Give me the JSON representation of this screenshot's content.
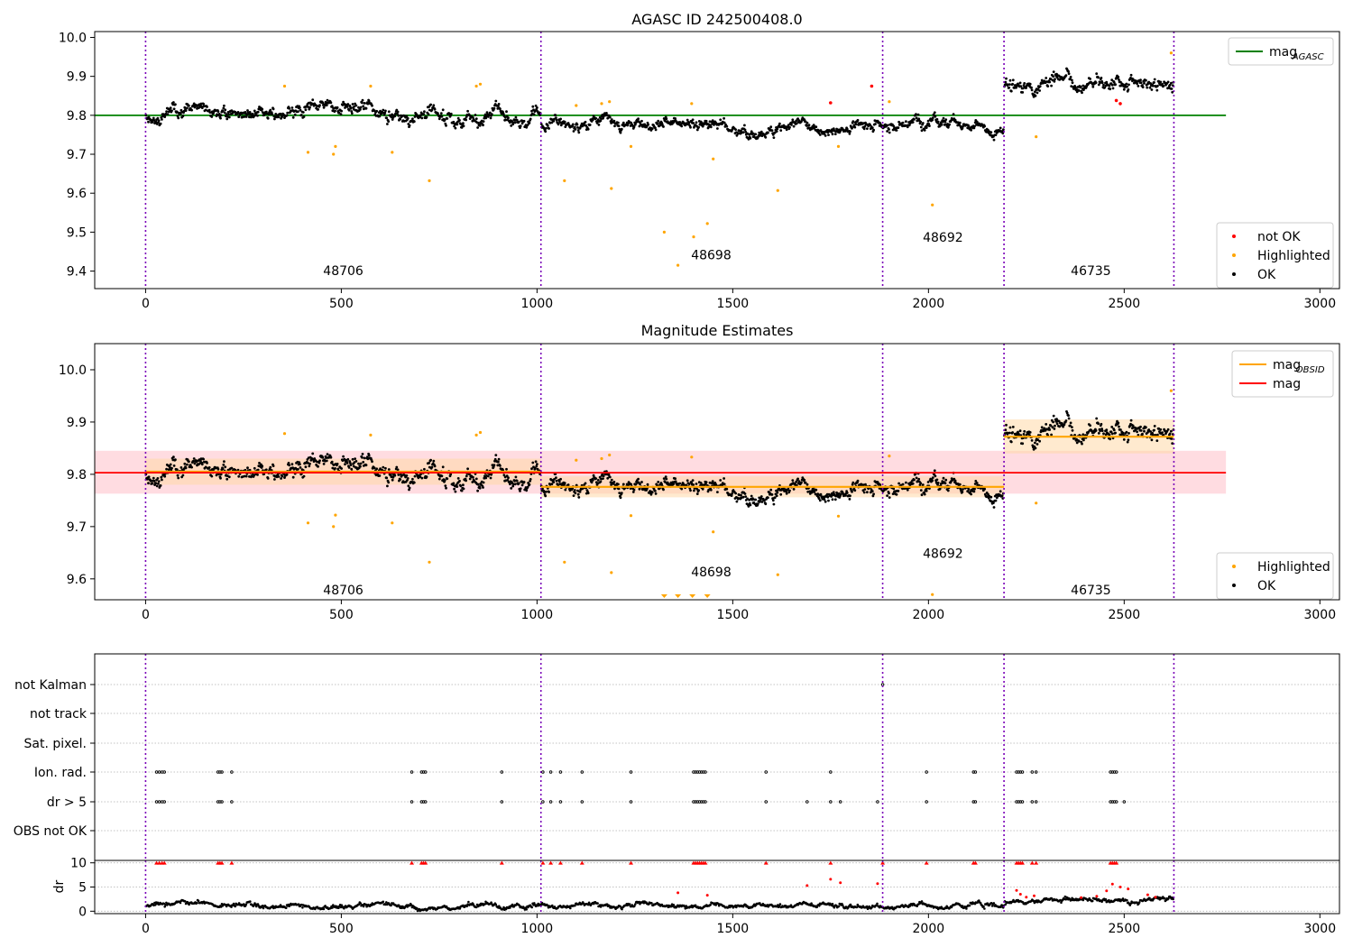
{
  "figure": {
    "colors": {
      "ok": "#000000",
      "highlighted": "#ffa500",
      "not_ok": "#ff0000",
      "mag_agasc": "#008000",
      "mag_obsid": "#ffa500",
      "mag": "#ff0000",
      "obsid_boundary": "#7a00b8",
      "mag_band": "#ffc0c8",
      "mag_obsid_band": "#ffd9a8"
    }
  },
  "chart_data": [
    {
      "type": "scatter",
      "title": "AGASC ID 242500408.0",
      "xlim": [
        -130,
        3050
      ],
      "ylim": [
        9.355,
        10.015
      ],
      "x_ticks": [
        0,
        500,
        1000,
        1500,
        2000,
        2500,
        3000
      ],
      "y_ticks": [
        9.4,
        9.5,
        9.6,
        9.7,
        9.8,
        9.9,
        10.0
      ],
      "y_tick_labels": [
        "9.4",
        "9.5",
        "9.6",
        "9.7",
        "9.8",
        "9.9",
        "10.0"
      ],
      "obsid_boundaries": [
        0,
        1010,
        1883,
        2193,
        2627
      ],
      "obsids": [
        {
          "label": "48706",
          "x": 505,
          "y": 9.39
        },
        {
          "label": "48698",
          "x": 1445,
          "y": 9.43
        },
        {
          "label": "48692",
          "x": 2037,
          "y": 9.475
        },
        {
          "label": "46735",
          "x": 2415,
          "y": 9.39
        }
      ],
      "segments": [
        {
          "start": 0,
          "end": 1010,
          "mean": 9.805,
          "spread": 0.025,
          "seed": 11
        },
        {
          "start": 1010,
          "end": 1883,
          "mean": 9.776,
          "spread": 0.022,
          "seed": 23
        },
        {
          "start": 1883,
          "end": 2193,
          "mean": 9.779,
          "spread": 0.022,
          "seed": 37
        },
        {
          "start": 2193,
          "end": 2627,
          "mean": 9.872,
          "spread": 0.028,
          "seed": 51
        }
      ],
      "series": [
        {
          "name": "mag_AGASC",
          "kind": "line",
          "x": [
            -130,
            2760
          ],
          "y": [
            9.8,
            9.8
          ]
        }
      ],
      "highlighted_points": [
        [
          355,
          9.875
        ],
        [
          415,
          9.705
        ],
        [
          480,
          9.7
        ],
        [
          485,
          9.72
        ],
        [
          575,
          9.875
        ],
        [
          630,
          9.705
        ],
        [
          725,
          9.632
        ],
        [
          845,
          9.875
        ],
        [
          855,
          9.88
        ],
        [
          1070,
          9.632
        ],
        [
          1100,
          9.825
        ],
        [
          1165,
          9.83
        ],
        [
          1185,
          9.835
        ],
        [
          1190,
          9.612
        ],
        [
          1240,
          9.72
        ],
        [
          1325,
          9.5
        ],
        [
          1360,
          9.415
        ],
        [
          1395,
          9.83
        ],
        [
          1400,
          9.488
        ],
        [
          1435,
          9.522
        ],
        [
          1450,
          9.688
        ],
        [
          1615,
          9.607
        ],
        [
          1770,
          9.72
        ],
        [
          1900,
          9.835
        ],
        [
          2010,
          9.57
        ],
        [
          2275,
          9.745
        ],
        [
          2620,
          9.96
        ]
      ],
      "not_ok_points": [
        [
          1750,
          9.832
        ],
        [
          1855,
          9.875
        ],
        [
          2480,
          9.838
        ],
        [
          2490,
          9.83
        ]
      ],
      "legends": [
        {
          "placement": "top-right",
          "entries": [
            {
              "label": "mag",
              "subscript": "AGASC",
              "color": "#008000",
              "marker": "line"
            }
          ]
        },
        {
          "placement": "lower-right",
          "entries": [
            {
              "label": "not OK",
              "color": "#ff0000",
              "marker": "dot"
            },
            {
              "label": "Highlighted",
              "color": "#ffa500",
              "marker": "dot"
            },
            {
              "label": "OK",
              "color": "#000000",
              "marker": "dot"
            }
          ]
        }
      ]
    },
    {
      "type": "scatter",
      "title": "Magnitude Estimates",
      "xlim": [
        -130,
        3050
      ],
      "ylim": [
        9.56,
        10.05
      ],
      "x_ticks": [
        0,
        500,
        1000,
        1500,
        2000,
        2500,
        3000
      ],
      "y_ticks": [
        9.6,
        9.7,
        9.8,
        9.9,
        10.0
      ],
      "y_tick_labels": [
        "9.6",
        "9.7",
        "9.8",
        "9.9",
        "10.0"
      ],
      "obsid_boundaries": [
        0,
        1010,
        1883,
        2193,
        2627
      ],
      "obsids": [
        {
          "label": "48706",
          "x": 505,
          "y": 9.57
        },
        {
          "label": "48698",
          "x": 1445,
          "y": 9.605
        },
        {
          "label": "48692",
          "x": 2037,
          "y": 9.64
        },
        {
          "label": "46735",
          "x": 2415,
          "y": 9.57
        }
      ],
      "segments": [
        {
          "start": 0,
          "end": 1010,
          "mean": 9.805,
          "spread": 0.025,
          "seed": 11
        },
        {
          "start": 1010,
          "end": 1883,
          "mean": 9.776,
          "spread": 0.022,
          "seed": 23
        },
        {
          "start": 1883,
          "end": 2193,
          "mean": 9.779,
          "spread": 0.022,
          "seed": 37
        },
        {
          "start": 2193,
          "end": 2627,
          "mean": 9.872,
          "spread": 0.028,
          "seed": 51
        }
      ],
      "series": [
        {
          "name": "mag",
          "kind": "line",
          "color": "#ff0000",
          "x": [
            -130,
            2760
          ],
          "y": [
            9.803,
            9.803
          ],
          "band": [
            9.763,
            9.845
          ]
        },
        {
          "name": "mag_OBSID",
          "kind": "steps",
          "color": "#ffa500",
          "steps": [
            {
              "x0": 0,
              "x1": 1010,
              "y": 9.805,
              "band": [
                9.78,
                9.83
              ]
            },
            {
              "x0": 1010,
              "x1": 2193,
              "y": 9.776,
              "band": [
                9.756,
                9.796
              ]
            },
            {
              "x0": 2193,
              "x1": 2627,
              "y": 9.872,
              "band": [
                9.84,
                9.905
              ]
            }
          ]
        }
      ],
      "highlighted_points": [
        [
          355,
          9.878
        ],
        [
          415,
          9.707
        ],
        [
          480,
          9.7
        ],
        [
          485,
          9.722
        ],
        [
          575,
          9.875
        ],
        [
          630,
          9.707
        ],
        [
          725,
          9.632
        ],
        [
          845,
          9.875
        ],
        [
          855,
          9.88
        ],
        [
          1070,
          9.632
        ],
        [
          1100,
          9.827
        ],
        [
          1165,
          9.83
        ],
        [
          1185,
          9.837
        ],
        [
          1190,
          9.612
        ],
        [
          1240,
          9.721
        ],
        [
          1395,
          9.833
        ],
        [
          1450,
          9.69
        ],
        [
          1615,
          9.608
        ],
        [
          1770,
          9.72
        ],
        [
          1900,
          9.835
        ],
        [
          2010,
          9.57
        ],
        [
          2275,
          9.745
        ],
        [
          2620,
          9.96
        ]
      ],
      "below_range_markers": [
        1325,
        1360,
        1397,
        1435
      ],
      "legends": [
        {
          "placement": "top-right",
          "entries": [
            {
              "label": "mag",
              "subscript": "OBSID",
              "color": "#ffa500",
              "marker": "line"
            },
            {
              "label": "mag",
              "color": "#ff0000",
              "marker": "line"
            }
          ]
        },
        {
          "placement": "lower-right",
          "entries": [
            {
              "label": "Highlighted",
              "color": "#ffa500",
              "marker": "dot"
            },
            {
              "label": "OK",
              "color": "#000000",
              "marker": "dot"
            }
          ]
        }
      ]
    },
    {
      "type": "scatter",
      "xlim": [
        -130,
        3050
      ],
      "x_ticks": [
        0,
        500,
        1000,
        1500,
        2000,
        2500,
        3000
      ],
      "obsid_boundaries": [
        0,
        1010,
        1883,
        2193,
        2627
      ],
      "flag_rows": [
        "not Kalman",
        "not track",
        "Sat. pixel.",
        "Ion. rad.",
        "dr > 5",
        "OBS not OK"
      ],
      "flag_points": {
        "not Kalman": [
          1883
        ],
        "not track": [],
        "Sat. pixel.": [],
        "Ion. rad.": [
          28,
          35,
          42,
          48,
          185,
          190,
          195,
          220,
          680,
          705,
          710,
          715,
          910,
          1015,
          1035,
          1060,
          1115,
          1240,
          1400,
          1405,
          1410,
          1415,
          1420,
          1425,
          1430,
          1585,
          1750,
          1995,
          2115,
          2120,
          2225,
          2230,
          2235,
          2240,
          2265,
          2275,
          2465,
          2470,
          2475,
          2480
        ],
        "dr > 5": [
          28,
          35,
          42,
          48,
          185,
          190,
          195,
          220,
          680,
          705,
          710,
          715,
          910,
          1015,
          1035,
          1060,
          1115,
          1240,
          1400,
          1405,
          1410,
          1415,
          1420,
          1425,
          1430,
          1585,
          1690,
          1750,
          1775,
          1870,
          1995,
          2115,
          2120,
          2225,
          2230,
          2235,
          2240,
          2265,
          2275,
          2465,
          2470,
          2475,
          2480,
          2500
        ],
        "OBS not OK": []
      },
      "dr": {
        "ylabel": "dr",
        "ylim": [
          -0.5,
          10.5
        ],
        "y_ticks": [
          0,
          5,
          10
        ],
        "y_tick_labels": [
          "0",
          "5",
          "10"
        ],
        "high_red_x": [
          28,
          35,
          42,
          48,
          185,
          190,
          195,
          220,
          680,
          705,
          710,
          715,
          910,
          1015,
          1035,
          1060,
          1115,
          1240,
          1400,
          1405,
          1410,
          1415,
          1420,
          1425,
          1430,
          1585,
          1750,
          1883,
          1995,
          2115,
          2120,
          2225,
          2230,
          2235,
          2240,
          2265,
          2275,
          2465,
          2470,
          2475,
          2480
        ],
        "mid_red_points": [
          [
            1360,
            3.8
          ],
          [
            1435,
            3.3
          ],
          [
            1690,
            5.3
          ],
          [
            1750,
            6.6
          ],
          [
            1775,
            5.9
          ],
          [
            1870,
            5.7
          ],
          [
            2225,
            4.3
          ],
          [
            2235,
            3.5
          ],
          [
            2250,
            2.9
          ],
          [
            2270,
            3.2
          ],
          [
            2390,
            2.8
          ],
          [
            2430,
            3.1
          ],
          [
            2455,
            4.2
          ],
          [
            2470,
            5.6
          ],
          [
            2490,
            5.0
          ],
          [
            2510,
            4.6
          ],
          [
            2560,
            3.4
          ],
          [
            2580,
            2.9
          ]
        ]
      },
      "legends": []
    }
  ]
}
